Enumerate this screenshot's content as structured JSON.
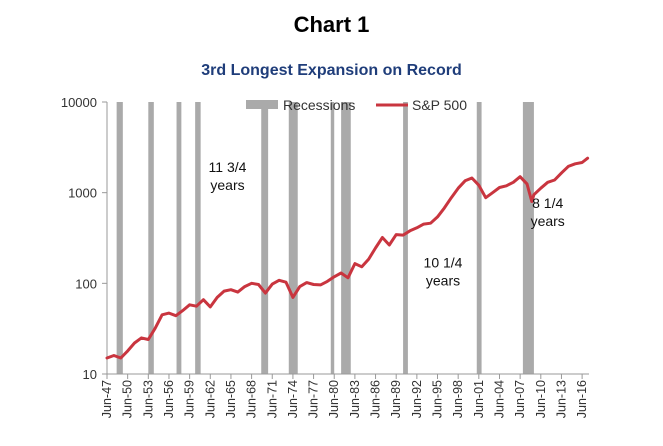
{
  "chart_data": {
    "type": "line",
    "title": "Chart 1",
    "subtitle": "3rd Longest Expansion on Record",
    "xlabel": "",
    "ylabel": "",
    "y_scale": "log",
    "ylim": [
      10,
      10000
    ],
    "y_ticks": [
      "10",
      "100",
      "1000",
      "10000"
    ],
    "xlim": [
      1947.5,
      2017.5
    ],
    "x_tick_labels": [
      "Jun-47",
      "Jun-50",
      "Jun-53",
      "Jun-56",
      "Jun-59",
      "Jun-62",
      "Jun-65",
      "Jun-68",
      "Jun-71",
      "Jun-74",
      "Jun-77",
      "Jun-80",
      "Jun-83",
      "Jun-86",
      "Jun-89",
      "Jun-92",
      "Jun-95",
      "Jun-98",
      "Jun-01",
      "Jun-04",
      "Jun-07",
      "Jun-10",
      "Jun-13",
      "Jun-16"
    ],
    "x_tick_years": [
      1947.5,
      1950.5,
      1953.5,
      1956.5,
      1959.5,
      1962.5,
      1965.5,
      1968.5,
      1971.5,
      1974.5,
      1977.5,
      1980.5,
      1983.5,
      1986.5,
      1989.5,
      1992.5,
      1995.5,
      1998.5,
      2001.5,
      2004.5,
      2007.5,
      2010.5,
      2013.5,
      2016.5
    ],
    "legend_position": "top-right",
    "grid": false,
    "series": [
      {
        "name": "S&P 500",
        "color": "#c9353f",
        "x": [
          1947.5,
          1948.5,
          1949.5,
          1950.5,
          1951.5,
          1952.5,
          1953.5,
          1954.5,
          1955.5,
          1956.5,
          1957.5,
          1958.5,
          1959.5,
          1960.5,
          1961.5,
          1962.5,
          1963.5,
          1964.5,
          1965.5,
          1966.5,
          1967.5,
          1968.5,
          1969.5,
          1970.5,
          1971.5,
          1972.5,
          1973.5,
          1974.5,
          1975.5,
          1976.5,
          1977.5,
          1978.5,
          1979.5,
          1980.5,
          1981.5,
          1982.5,
          1983.5,
          1984.5,
          1985.5,
          1986.5,
          1987.5,
          1988.5,
          1989.5,
          1990.5,
          1991.5,
          1992.5,
          1993.5,
          1994.5,
          1995.5,
          1996.5,
          1997.5,
          1998.5,
          1999.5,
          2000.5,
          2001.5,
          2002.5,
          2003.5,
          2004.5,
          2005.5,
          2006.5,
          2007.5,
          2008.5,
          2009.2,
          2009.5,
          2010.5,
          2011.5,
          2012.5,
          2013.5,
          2014.5,
          2015.5,
          2016.5,
          2017.3
        ],
        "values": [
          15,
          16,
          15,
          18,
          22,
          25,
          24,
          32,
          45,
          47,
          44,
          50,
          58,
          56,
          66,
          55,
          70,
          82,
          85,
          80,
          92,
          100,
          97,
          78,
          98,
          108,
          103,
          70,
          92,
          102,
          97,
          96,
          105,
          118,
          130,
          115,
          165,
          152,
          185,
          245,
          320,
          265,
          345,
          340,
          380,
          410,
          450,
          460,
          540,
          680,
          880,
          1120,
          1350,
          1450,
          1210,
          880,
          1000,
          1140,
          1190,
          1300,
          1500,
          1250,
          800,
          950,
          1120,
          1300,
          1380,
          1650,
          1950,
          2080,
          2150,
          2400
        ]
      }
    ],
    "recessions": {
      "name": "Recessions",
      "color": "#aaaaaa",
      "periods": [
        [
          1948.9,
          1949.8
        ],
        [
          1953.5,
          1954.3
        ],
        [
          1957.6,
          1958.3
        ],
        [
          1960.3,
          1961.1
        ],
        [
          1969.9,
          1970.9
        ],
        [
          1973.9,
          1975.2
        ],
        [
          1980.0,
          1980.5
        ],
        [
          1981.5,
          1982.9
        ],
        [
          1990.5,
          1991.2
        ],
        [
          2001.2,
          2001.9
        ],
        [
          2007.9,
          2009.5
        ]
      ]
    },
    "annotations": [
      {
        "text": "11 3/4 years",
        "lines": [
          "11 3/4",
          "years"
        ],
        "x": 1965.0,
        "y": 1700
      },
      {
        "text": "10 1/4 years",
        "lines": [
          "10 1/4",
          "years"
        ],
        "x": 1996.3,
        "y": 150
      },
      {
        "text": "8 1/4 years",
        "lines": [
          "8 1/4",
          "years"
        ],
        "x": 2011.5,
        "y": 680
      }
    ]
  }
}
